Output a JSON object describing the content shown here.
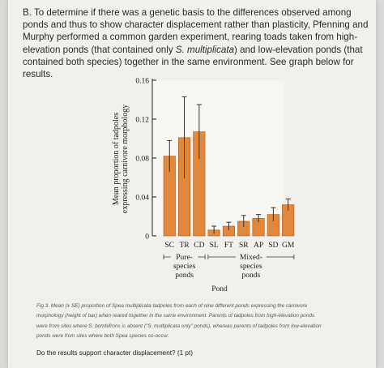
{
  "question": {
    "intro": "B. To determine if there was a genetic basis to the differences observed among ponds and thus to show character displacement rather than plasticity, Pfenning and Murphy performed a common garden experiment, rearing toads taken from high-elevation ponds (that contained only ",
    "species_only": "S. multiplicata",
    "body": ") and low-elevation ponds (that contained both species) together in the same environment.",
    "tail": " See graph below for results."
  },
  "chart_data": {
    "type": "bar",
    "categories": [
      "SC",
      "TR",
      "CD",
      "SL",
      "FT",
      "SR",
      "AP",
      "SD",
      "GM"
    ],
    "values": [
      0.082,
      0.101,
      0.107,
      0.006,
      0.01,
      0.015,
      0.018,
      0.022,
      0.032
    ],
    "errors": [
      0.016,
      0.042,
      0.028,
      0.004,
      0.004,
      0.006,
      0.004,
      0.007,
      0.006
    ],
    "ylim": [
      0,
      0.16
    ],
    "yticks": [
      "0",
      "0.04",
      "0.08",
      "0.12",
      "0.16"
    ],
    "ylabel_line1": "Mean proportion of tadpoles",
    "ylabel_line2": "expressing carnivore morphology",
    "xlabel": "Pond",
    "groups": [
      {
        "label_lines": [
          "Pure-",
          "species",
          "ponds"
        ],
        "from": 0,
        "to": 2
      },
      {
        "label_lines": [
          "Mixed-",
          "species",
          "ponds"
        ],
        "from": 3,
        "to": 8
      }
    ],
    "bar_color": "#e0883d",
    "grid": false
  },
  "caption": {
    "line1": "Fig.3. Mean (± SE) proportion of Spea multiplicata tadpoles from each of nine different ponds expressing the carnivore",
    "line2": "morphology (height of bar) when reared together in the same environment. Parents of tadpoles from high-elevation ponds",
    "line3": "were from sites where S. bombifrons is absent (\"S. multiplicata only\" ponds), whereas parents of tadpoles from low-elevation",
    "line4": "ponds were from sites where both Spea species co-occur."
  },
  "prompt": "Do the results support character displacement? (1 pt)"
}
